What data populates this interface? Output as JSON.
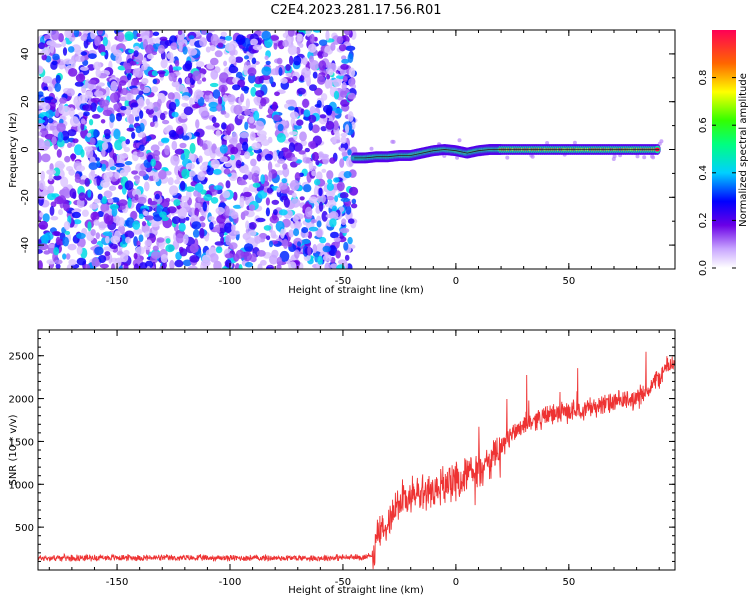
{
  "title": "C2E4.2023.281.17.56.R01",
  "chart_data": [
    {
      "type": "heatmap",
      "xlabel": "Height of straight line (km)",
      "ylabel": "Frequency (Hz)",
      "xlim": [
        -185,
        97
      ],
      "ylim": [
        -50,
        50
      ],
      "xticks": [
        -150,
        -100,
        -50,
        0,
        50
      ],
      "yticks": [
        -40,
        -20,
        0,
        20,
        40
      ],
      "noise_region": {
        "x": [
          -185,
          -45
        ],
        "y": [
          -50,
          50
        ],
        "amplitude_range": [
          0.05,
          0.45
        ]
      },
      "signal_track": [
        {
          "x": -45,
          "y": -3.5,
          "amplitude": 0.45
        },
        {
          "x": -40,
          "y": -3.5,
          "amplitude": 0.55
        },
        {
          "x": -35,
          "y": -3,
          "amplitude": 0.6
        },
        {
          "x": -30,
          "y": -3,
          "amplitude": 0.65
        },
        {
          "x": -25,
          "y": -2.5,
          "amplitude": 0.7
        },
        {
          "x": -20,
          "y": -2.5,
          "amplitude": 0.75
        },
        {
          "x": -15,
          "y": -1.5,
          "amplitude": 0.8
        },
        {
          "x": -10,
          "y": -0.5,
          "amplitude": 0.85
        },
        {
          "x": -5,
          "y": 0,
          "amplitude": 0.85
        },
        {
          "x": 0,
          "y": -0.5,
          "amplitude": 0.85
        },
        {
          "x": 5,
          "y": -1.5,
          "amplitude": 0.8
        },
        {
          "x": 10,
          "y": -0.5,
          "amplitude": 0.85
        },
        {
          "x": 15,
          "y": 0,
          "amplitude": 0.9
        },
        {
          "x": 20,
          "y": 0,
          "amplitude": 0.9
        },
        {
          "x": 30,
          "y": 0,
          "amplitude": 0.9
        },
        {
          "x": 40,
          "y": 0,
          "amplitude": 0.9
        },
        {
          "x": 50,
          "y": 0,
          "amplitude": 0.9
        },
        {
          "x": 60,
          "y": 0,
          "amplitude": 0.9
        },
        {
          "x": 70,
          "y": 0,
          "amplitude": 0.9
        },
        {
          "x": 80,
          "y": 0,
          "amplitude": 0.9
        },
        {
          "x": 90,
          "y": 0,
          "amplitude": 0.95
        }
      ],
      "colorbar": {
        "label": "Normalized spectral amplitude",
        "range": [
          0,
          1
        ],
        "ticks": [
          0.0,
          0.2,
          0.4,
          0.6,
          0.8
        ]
      }
    },
    {
      "type": "line",
      "xlabel": "Height of straight line (km)",
      "ylabel": "SNR (10 * v/v)",
      "xlim": [
        -185,
        97
      ],
      "ylim": [
        0,
        2800
      ],
      "xticks": [
        -150,
        -100,
        -50,
        0,
        50
      ],
      "yticks": [
        500,
        1000,
        1500,
        2000,
        2500
      ],
      "color": "#ee3333",
      "series": [
        {
          "x": [
            -185,
            -150,
            -120,
            -100,
            -80,
            -60,
            -50,
            -40,
            -36,
            -35,
            -32,
            -30,
            -28,
            -25,
            -20,
            -15,
            -10,
            -5,
            0,
            5,
            10,
            15,
            20,
            25,
            30,
            40,
            50,
            60,
            70,
            80,
            85,
            90,
            93,
            97
          ],
          "y": [
            140,
            145,
            140,
            140,
            140,
            140,
            145,
            150,
            200,
            450,
            400,
            600,
            700,
            800,
            850,
            900,
            920,
            1000,
            1050,
            1100,
            1150,
            1250,
            1400,
            1600,
            1700,
            1800,
            1850,
            1900,
            1950,
            2000,
            2100,
            2250,
            2350,
            2450
          ]
        }
      ]
    }
  ]
}
